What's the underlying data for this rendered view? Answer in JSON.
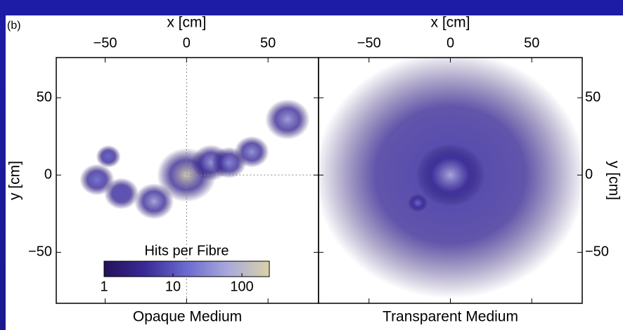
{
  "chart_data": [
    {
      "type": "heatmap",
      "panel_label": "(b)",
      "xlabel": "x [cm]",
      "ylabel": "y [cm]",
      "caption": "Opaque Medium",
      "xlim": [
        -80,
        81
      ],
      "ylim": [
        -83,
        76
      ],
      "xticks": [
        {
          "value": -50,
          "label": "−50"
        },
        0,
        50
      ],
      "yticks": [
        {
          "value": -50,
          "label": "−50"
        },
        0,
        50
      ],
      "ytick_side": "left",
      "crosshair": true,
      "blobs": {
        "x": [
          -55,
          -48,
          -40,
          -20,
          0,
          15,
          26,
          40,
          62
        ],
        "y": [
          -3,
          12,
          -12,
          -17,
          0,
          8,
          8,
          15,
          36
        ],
        "sigma": [
          7,
          5,
          7,
          8,
          12,
          8,
          7,
          7,
          9
        ],
        "hits": [
          20,
          15,
          10,
          60,
          200,
          40,
          30,
          40,
          50
        ]
      },
      "colorbar": {
        "label": "Hits per Fibre",
        "clim": [
          1,
          250
        ],
        "ticks": [
          1,
          10,
          100
        ],
        "log": true,
        "colors": [
          "#24115c",
          "#3a2a96",
          "#6b6bd0",
          "#a9a9dc",
          "#d9d2a8"
        ]
      }
    },
    {
      "type": "heatmap",
      "xlabel": "x [cm]",
      "ylabel": "y [cm]",
      "caption": "Transparent Medium",
      "xlim": [
        -81,
        81
      ],
      "ylim": [
        -83,
        76
      ],
      "xticks": [
        {
          "value": -50,
          "label": "−50"
        },
        0,
        50
      ],
      "yticks": [
        {
          "value": -50,
          "label": "−50"
        },
        0,
        50
      ],
      "ytick_side": "right",
      "crosshair": false,
      "blobs": {
        "x": [
          0,
          0,
          -20
        ],
        "y": [
          0,
          0,
          -18
        ],
        "sigma": [
          55,
          14,
          4
        ],
        "hits": [
          8,
          60,
          15
        ]
      }
    }
  ]
}
